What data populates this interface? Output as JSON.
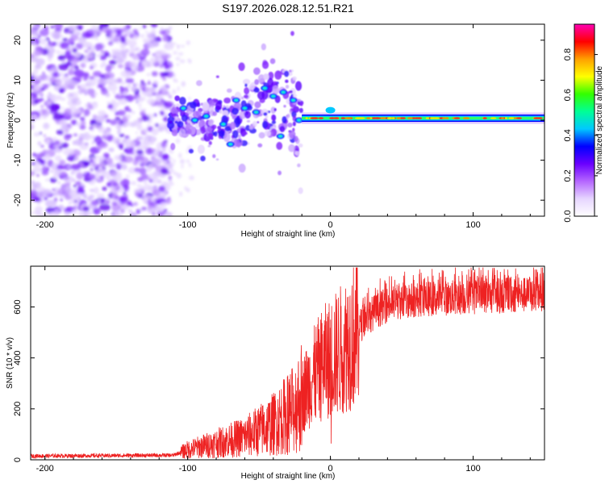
{
  "title": "S197.2026.028.12.51.R21",
  "chart_data": [
    {
      "type": "heatmap",
      "name": "spectrogram",
      "xlabel": "Height of straight line (km)",
      "ylabel": "Frequency (Hz)",
      "xlim": [
        -210,
        150
      ],
      "ylim": [
        -24,
        24
      ],
      "xticks": [
        -200,
        -100,
        0,
        100
      ],
      "yticks": [
        -20,
        -10,
        0,
        10,
        20
      ],
      "colorbar": {
        "label": "Normalized spectral amplitude",
        "range": [
          0,
          0.95
        ],
        "ticks": [
          "0.0",
          "0.2",
          "0.4",
          "0.6",
          "0.8"
        ],
        "tick_values": [
          0,
          0.2,
          0.4,
          0.6,
          0.8
        ],
        "colormap": [
          "#ffffff",
          "#e6d5ff",
          "#b566ff",
          "#6a00ff",
          "#0000ff",
          "#00c8ff",
          "#00ff96",
          "#33ff00",
          "#ffff00",
          "#ffa000",
          "#ff0000",
          "#ff00b4"
        ]
      },
      "regions": [
        {
          "x_range": [
            -210,
            -112
          ],
          "freq_range": [
            -24,
            24
          ],
          "description": "diffuse purple speckle noise"
        },
        {
          "x_range": [
            -112,
            -20
          ],
          "freq_range": [
            -12,
            12
          ],
          "description": "clustered blobs"
        },
        {
          "x_range": [
            -20,
            150
          ],
          "freq_center": 0.5,
          "description": "narrow carrier line"
        }
      ]
    },
    {
      "type": "line",
      "name": "snr",
      "xlabel": "Height of straight line (km)",
      "ylabel": "SNR (10 * v/v)",
      "xlim": [
        -210,
        150
      ],
      "ylim": [
        0,
        760
      ],
      "xticks": [
        -200,
        -100,
        0,
        100
      ],
      "yticks": [
        0,
        200,
        400,
        600
      ],
      "color": "#ee2222",
      "series_profile": {
        "x": [
          -210,
          -110,
          -100,
          -80,
          -60,
          -40,
          -25,
          -15,
          -5,
          5,
          15,
          25,
          40,
          60,
          100,
          150
        ],
        "y": [
          15,
          18,
          40,
          65,
          90,
          140,
          200,
          300,
          380,
          420,
          480,
          560,
          610,
          630,
          640,
          650
        ]
      }
    }
  ]
}
